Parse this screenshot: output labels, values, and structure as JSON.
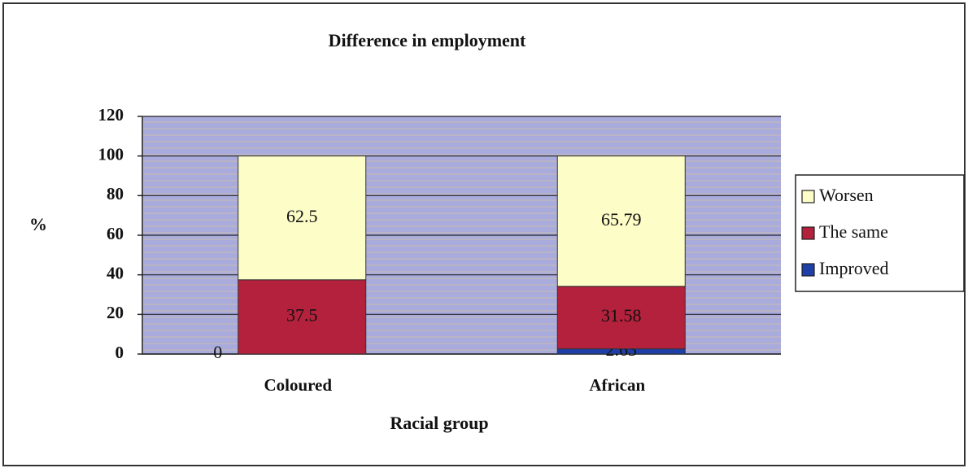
{
  "chart_data": {
    "type": "stacked_bar",
    "title": "Difference in employment",
    "y_label": "%",
    "x_label": "Racial group",
    "categories": [
      "Coloured",
      "African"
    ],
    "series": [
      {
        "name": "Improved",
        "color": "#1f3fa8",
        "values": [
          0,
          2.63
        ]
      },
      {
        "name": "The same",
        "color": "#b3213c",
        "values": [
          37.5,
          31.58
        ]
      },
      {
        "name": "Worsen",
        "color": "#fdfdc8",
        "values": [
          62.5,
          65.79
        ]
      }
    ],
    "ylim": [
      0,
      120
    ],
    "yticks": [
      0,
      20,
      40,
      60,
      80,
      100,
      120
    ],
    "grid": true,
    "legend": "right"
  }
}
